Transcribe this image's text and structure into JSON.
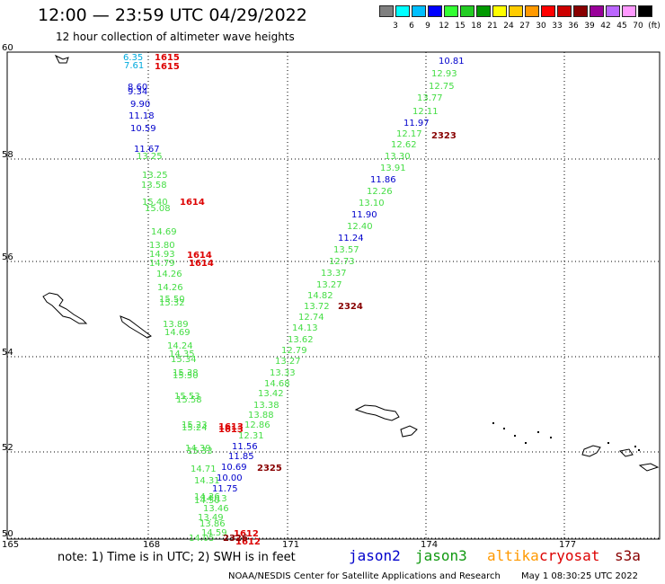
{
  "title": "12:00 — 23:59 UTC 04/29/2022",
  "subtitle": "12 hour collection of altimeter wave heights",
  "legend": {
    "colors": [
      "#808080",
      "#00ffff",
      "#00bfff",
      "#0000ff",
      "#33ff33",
      "#22cc22",
      "#009900",
      "#ffff00",
      "#ffcc00",
      "#ff9900",
      "#ff0000",
      "#cc0000",
      "#880000",
      "#990099",
      "#bb66ff",
      "#ff99ff",
      "#000000"
    ],
    "labels": [
      "3",
      "6",
      "9",
      "12",
      "15",
      "18",
      "21",
      "24",
      "27",
      "30",
      "33",
      "36",
      "39",
      "42",
      "45",
      "70",
      "(ft)"
    ]
  },
  "axes": {
    "lat_labels": [
      "60",
      "58",
      "56",
      "54",
      "52",
      "50"
    ],
    "lon_labels": [
      "165",
      "168",
      "171",
      "174",
      "177"
    ]
  },
  "jason3_colors": {
    "green": "#44dd44",
    "blue": "#0000cc",
    "cyan": "#00aadd",
    "red": "#dd0000",
    "darkred": "#880000"
  },
  "observations": [
    {
      "t": "6.35",
      "c": "cyan"
    },
    {
      "t": "7.61",
      "c": "cyan"
    },
    {
      "t": "1615",
      "c": "red"
    },
    {
      "t": "1615",
      "c": "red"
    },
    {
      "t": "8.60",
      "c": "blue"
    },
    {
      "t": "9.34",
      "c": "blue"
    },
    {
      "t": "9.90",
      "c": "blue"
    },
    {
      "t": "11.18",
      "c": "blue"
    },
    {
      "t": "10.59",
      "c": "blue"
    },
    {
      "t": "11.67",
      "c": "blue"
    },
    {
      "t": "13.25",
      "c": "green"
    },
    {
      "t": "13.25",
      "c": "green"
    },
    {
      "t": "13.58",
      "c": "green"
    },
    {
      "t": "15.40",
      "c": "green"
    },
    {
      "t": "1614",
      "c": "red"
    },
    {
      "t": "15.08",
      "c": "green"
    },
    {
      "t": "14.69",
      "c": "green"
    },
    {
      "t": "13.80",
      "c": "green"
    },
    {
      "t": "14.93",
      "c": "green"
    },
    {
      "t": "1614",
      "c": "red"
    },
    {
      "t": "14.79",
      "c": "green"
    },
    {
      "t": "1614",
      "c": "red"
    },
    {
      "t": "14.26",
      "c": "green"
    },
    {
      "t": "14.26",
      "c": "green"
    },
    {
      "t": "15.50",
      "c": "green"
    },
    {
      "t": "15.32",
      "c": "green"
    },
    {
      "t": "13.89",
      "c": "green"
    },
    {
      "t": "14.69",
      "c": "green"
    },
    {
      "t": "14.24",
      "c": "green"
    },
    {
      "t": "14.35",
      "c": "green"
    },
    {
      "t": "15.34",
      "c": "green"
    },
    {
      "t": "15.38",
      "c": "green"
    },
    {
      "t": "15.50",
      "c": "green"
    },
    {
      "t": "15.53",
      "c": "green"
    },
    {
      "t": "15.58",
      "c": "green"
    },
    {
      "t": "15.23",
      "c": "green"
    },
    {
      "t": "15.24",
      "c": "green"
    },
    {
      "t": "1613",
      "c": "red"
    },
    {
      "t": "1613",
      "c": "red"
    },
    {
      "t": "14.39",
      "c": "green"
    },
    {
      "t": "15.33",
      "c": "green"
    },
    {
      "t": "14.71",
      "c": "green"
    },
    {
      "t": "14.31",
      "c": "green"
    },
    {
      "t": "14.13",
      "c": "green"
    },
    {
      "t": "14.36",
      "c": "green"
    },
    {
      "t": "14.50",
      "c": "green"
    },
    {
      "t": "13.46",
      "c": "green"
    },
    {
      "t": "13.49",
      "c": "green"
    },
    {
      "t": "13.86",
      "c": "green"
    },
    {
      "t": "14.59",
      "c": "green"
    },
    {
      "t": "14.05",
      "c": "green"
    },
    {
      "t": "1612",
      "c": "red"
    },
    {
      "t": "1612",
      "c": "red"
    },
    {
      "t": "2326",
      "c": "darkred"
    },
    {
      "t": "10.81",
      "c": "blue"
    },
    {
      "t": "12.93",
      "c": "green"
    },
    {
      "t": "12.75",
      "c": "green"
    },
    {
      "t": "13.77",
      "c": "green"
    },
    {
      "t": "12.11",
      "c": "green"
    },
    {
      "t": "11.97",
      "c": "blue"
    },
    {
      "t": "12.17",
      "c": "green"
    },
    {
      "t": "2323",
      "c": "darkred"
    },
    {
      "t": "12.62",
      "c": "green"
    },
    {
      "t": "13.30",
      "c": "green"
    },
    {
      "t": "13.91",
      "c": "green"
    },
    {
      "t": "11.86",
      "c": "blue"
    },
    {
      "t": "12.26",
      "c": "green"
    },
    {
      "t": "13.10",
      "c": "green"
    },
    {
      "t": "11.90",
      "c": "blue"
    },
    {
      "t": "12.40",
      "c": "green"
    },
    {
      "t": "11.24",
      "c": "blue"
    },
    {
      "t": "13.57",
      "c": "green"
    },
    {
      "t": "12.73",
      "c": "green"
    },
    {
      "t": "13.37",
      "c": "green"
    },
    {
      "t": "13.27",
      "c": "green"
    },
    {
      "t": "14.82",
      "c": "green"
    },
    {
      "t": "13.72",
      "c": "green"
    },
    {
      "t": "2324",
      "c": "darkred"
    },
    {
      "t": "12.74",
      "c": "green"
    },
    {
      "t": "14.13",
      "c": "green"
    },
    {
      "t": "13.62",
      "c": "green"
    },
    {
      "t": "12.79",
      "c": "green"
    },
    {
      "t": "13.27",
      "c": "green"
    },
    {
      "t": "13.33",
      "c": "green"
    },
    {
      "t": "14.68",
      "c": "green"
    },
    {
      "t": "13.42",
      "c": "green"
    },
    {
      "t": "13.38",
      "c": "green"
    },
    {
      "t": "13.88",
      "c": "green"
    },
    {
      "t": "12.86",
      "c": "green"
    },
    {
      "t": "12.31",
      "c": "green"
    },
    {
      "t": "11.56",
      "c": "blue"
    },
    {
      "t": "11.85",
      "c": "blue"
    },
    {
      "t": "10.69",
      "c": "blue"
    },
    {
      "t": "2325",
      "c": "darkred"
    },
    {
      "t": "10.00",
      "c": "blue"
    },
    {
      "t": "11.75",
      "c": "blue"
    }
  ],
  "note": "note: 1) Time is in UTC; 2) SWH is in feet",
  "satellites": [
    {
      "name": "jason2",
      "color": "#0000cc"
    },
    {
      "name": "jason3",
      "color": "#119911"
    },
    {
      "name": "altika",
      "color": "#ff9900"
    },
    {
      "name": "cryosat",
      "color": "#dd0000"
    },
    {
      "name": "s3a",
      "color": "#880000"
    }
  ],
  "credit": "NOAA/NESDIS Center for Satellite Applications and Research",
  "timestamp": "May  1 08:30:25 UTC 2022"
}
